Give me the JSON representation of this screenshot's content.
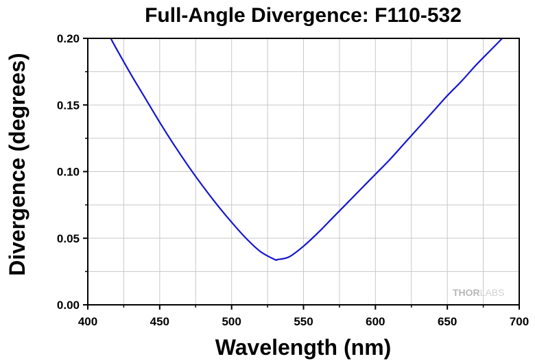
{
  "chart_data": {
    "type": "line",
    "title": "Full-Angle Divergence: F110-532",
    "xlabel": "Wavelength (nm)",
    "ylabel": "Divergence (degrees)",
    "xlim": [
      400,
      700
    ],
    "ylim": [
      0.0,
      0.2
    ],
    "x_ticks": [
      400,
      450,
      500,
      550,
      600,
      650,
      700
    ],
    "x_tick_labels": [
      "400",
      "450",
      "500",
      "550",
      "600",
      "650",
      "700"
    ],
    "y_ticks": [
      0.0,
      0.05,
      0.1,
      0.15,
      0.2
    ],
    "y_tick_labels": [
      "0.00",
      "0.05",
      "0.10",
      "0.15",
      "0.20"
    ],
    "grid": true,
    "legend": "none",
    "series": [
      {
        "color": "#1414d2",
        "x": [
          415,
          420,
          430,
          440,
          450,
          460,
          470,
          480,
          490,
          500,
          510,
          520,
          530,
          532,
          540,
          550,
          560,
          570,
          580,
          590,
          600,
          610,
          620,
          630,
          640,
          650,
          660,
          670,
          680,
          690
        ],
        "y": [
          0.202,
          0.192,
          0.173,
          0.155,
          0.137,
          0.12,
          0.104,
          0.089,
          0.075,
          0.062,
          0.05,
          0.04,
          0.034,
          0.034,
          0.036,
          0.044,
          0.054,
          0.065,
          0.076,
          0.087,
          0.098,
          0.109,
          0.121,
          0.133,
          0.145,
          0.157,
          0.168,
          0.18,
          0.191,
          0.202
        ]
      }
    ]
  },
  "watermark": {
    "part1": "THOR",
    "part2": "LABS"
  },
  "colors": {
    "curve": "#1414d2",
    "grid": "#c8c8c8",
    "axis": "#000000",
    "logo": "#bdbdbd"
  }
}
